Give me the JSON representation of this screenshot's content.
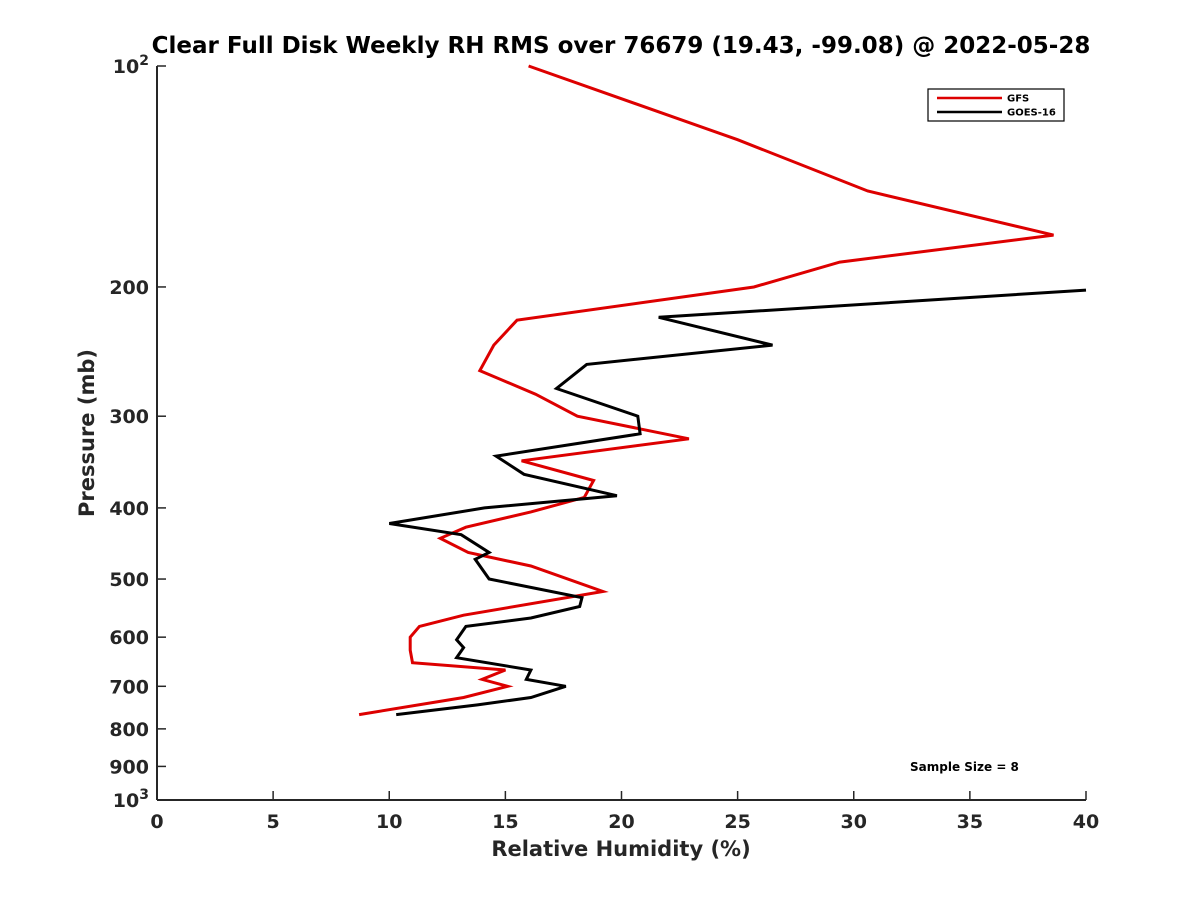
{
  "chart_data": {
    "type": "line",
    "title": "Clear Full Disk Weekly RH RMS over 76679 (19.43, -99.08) @ 2022-05-28",
    "xlabel": "Relative Humidity (%)",
    "ylabel": "Pressure (mb)",
    "xlim": [
      0,
      40
    ],
    "ylim": [
      100,
      1000
    ],
    "y_scale": "log",
    "y_reversed": true,
    "grid": false,
    "legend_position": "top-right",
    "x_ticks": [
      {
        "value": 0,
        "label": "0"
      },
      {
        "value": 5,
        "label": "5"
      },
      {
        "value": 10,
        "label": "10"
      },
      {
        "value": 15,
        "label": "15"
      },
      {
        "value": 20,
        "label": "20"
      },
      {
        "value": 25,
        "label": "25"
      },
      {
        "value": 30,
        "label": "30"
      },
      {
        "value": 35,
        "label": "35"
      },
      {
        "value": 40,
        "label": "40"
      }
    ],
    "y_ticks": [
      {
        "value": 100,
        "base": "10",
        "exp": "2"
      },
      {
        "value": 200,
        "base": "200",
        "exp": ""
      },
      {
        "value": 300,
        "base": "300",
        "exp": ""
      },
      {
        "value": 400,
        "base": "400",
        "exp": ""
      },
      {
        "value": 500,
        "base": "500",
        "exp": ""
      },
      {
        "value": 600,
        "base": "600",
        "exp": ""
      },
      {
        "value": 700,
        "base": "700",
        "exp": ""
      },
      {
        "value": 800,
        "base": "800",
        "exp": ""
      },
      {
        "value": 900,
        "base": "900",
        "exp": ""
      },
      {
        "value": 1000,
        "base": "10",
        "exp": "3"
      }
    ],
    "series": [
      {
        "name": "GFS",
        "color": "#dd0000",
        "points": [
          [
            16.0,
            100
          ],
          [
            25.0,
            126
          ],
          [
            30.6,
            148
          ],
          [
            38.6,
            170
          ],
          [
            29.4,
            185
          ],
          [
            25.7,
            200
          ],
          [
            15.5,
            222
          ],
          [
            14.5,
            240
          ],
          [
            13.9,
            260
          ],
          [
            16.3,
            280
          ],
          [
            18.1,
            300
          ],
          [
            22.9,
            322
          ],
          [
            15.7,
            345
          ],
          [
            18.8,
            367
          ],
          [
            18.4,
            387
          ],
          [
            16.1,
            405
          ],
          [
            13.3,
            425
          ],
          [
            12.2,
            440
          ],
          [
            13.4,
            460
          ],
          [
            16.1,
            480
          ],
          [
            19.2,
            520
          ],
          [
            13.2,
            560
          ],
          [
            11.3,
            580
          ],
          [
            10.9,
            600
          ],
          [
            10.9,
            625
          ],
          [
            11.0,
            650
          ],
          [
            15.0,
            665
          ],
          [
            14.0,
            685
          ],
          [
            15.1,
            700
          ],
          [
            13.2,
            725
          ],
          [
            8.7,
            765
          ]
        ]
      },
      {
        "name": "GOES-16",
        "color": "#000000",
        "points": [
          [
            40.0,
            202
          ],
          [
            21.6,
            220
          ],
          [
            26.5,
            240
          ],
          [
            18.5,
            255
          ],
          [
            17.2,
            275
          ],
          [
            20.7,
            300
          ],
          [
            20.8,
            317
          ],
          [
            14.6,
            340
          ],
          [
            15.8,
            360
          ],
          [
            19.8,
            385
          ],
          [
            14.1,
            400
          ],
          [
            10.0,
            420
          ],
          [
            13.1,
            435
          ],
          [
            14.3,
            460
          ],
          [
            13.7,
            470
          ],
          [
            14.3,
            500
          ],
          [
            18.3,
            530
          ],
          [
            18.2,
            545
          ],
          [
            16.1,
            565
          ],
          [
            13.3,
            580
          ],
          [
            12.9,
            605
          ],
          [
            13.2,
            620
          ],
          [
            12.9,
            640
          ],
          [
            16.1,
            665
          ],
          [
            15.9,
            685
          ],
          [
            17.6,
            700
          ],
          [
            16.1,
            725
          ],
          [
            13.8,
            742
          ],
          [
            10.3,
            765
          ]
        ]
      }
    ],
    "legend": [
      "GFS",
      "GOES-16"
    ],
    "annotations": [
      {
        "text": "Sample Size = 8"
      }
    ]
  }
}
